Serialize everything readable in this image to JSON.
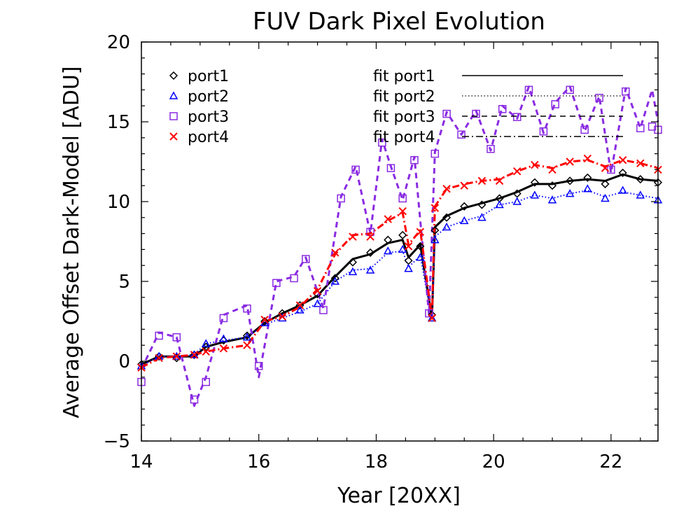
{
  "chart_data": {
    "type": "line",
    "title": "FUV Dark Pixel Evolution",
    "xlabel": "Year [20XX]",
    "ylabel": "Average Offset Dark-Model [ADU]",
    "xlim": [
      14,
      22.8
    ],
    "ylim": [
      -5,
      20
    ],
    "x_ticks": [
      "14",
      "16",
      "18",
      "20",
      "22"
    ],
    "y_ticks": [
      "−5",
      "0",
      "5",
      "10",
      "15",
      "20"
    ],
    "legend": {
      "placement": "top",
      "markers": [
        {
          "label": "port1",
          "color": "#000000",
          "marker": "diamond"
        },
        {
          "label": "port2",
          "color": "#0000ff",
          "marker": "triangle"
        },
        {
          "label": "port3",
          "color": "#8a2be2",
          "marker": "square"
        },
        {
          "label": "port4",
          "color": "#ff0000",
          "marker": "cross"
        }
      ],
      "fits": [
        {
          "label": "fit port1",
          "dash": "solid"
        },
        {
          "label": "fit port2",
          "dash": "dotted"
        },
        {
          "label": "fit port3",
          "dash": "dashed"
        },
        {
          "label": "fit port4",
          "dash": "dashdot"
        }
      ]
    },
    "series": [
      {
        "name": "port1",
        "color": "#000000",
        "marker": "diamond",
        "x": [
          14.0,
          14.3,
          14.6,
          14.9,
          15.1,
          15.4,
          15.8,
          16.1,
          16.4,
          16.7,
          17.0,
          17.3,
          17.6,
          17.9,
          18.2,
          18.45,
          18.55,
          18.75,
          18.95,
          19.0,
          19.2,
          19.5,
          19.8,
          20.1,
          20.4,
          20.7,
          21.0,
          21.3,
          21.6,
          21.9,
          22.2,
          22.5,
          22.8
        ],
        "y": [
          -0.2,
          0.3,
          0.2,
          0.4,
          0.9,
          1.3,
          1.6,
          2.5,
          3.0,
          3.5,
          4.2,
          5.2,
          6.2,
          6.8,
          7.6,
          7.9,
          6.3,
          7.2,
          2.9,
          8.2,
          9.0,
          9.7,
          9.8,
          10.2,
          10.5,
          11.2,
          11.0,
          11.3,
          11.5,
          11.1,
          11.8,
          11.4,
          11.2
        ]
      },
      {
        "name": "port2",
        "color": "#0000ff",
        "marker": "triangle",
        "x": [
          14.0,
          14.3,
          14.6,
          14.9,
          15.1,
          15.4,
          15.8,
          16.1,
          16.4,
          16.7,
          17.0,
          17.3,
          17.6,
          17.9,
          18.2,
          18.45,
          18.55,
          18.75,
          18.95,
          19.0,
          19.2,
          19.5,
          19.8,
          20.1,
          20.4,
          20.7,
          21.0,
          21.3,
          21.6,
          21.9,
          22.2,
          22.5,
          22.8
        ],
        "y": [
          -0.3,
          0.3,
          0.3,
          0.4,
          1.1,
          1.4,
          1.5,
          2.4,
          2.7,
          3.2,
          3.6,
          5.0,
          5.6,
          5.7,
          6.9,
          7.0,
          5.8,
          6.5,
          2.7,
          7.6,
          8.4,
          8.8,
          9.0,
          9.8,
          10.0,
          10.4,
          10.1,
          10.5,
          10.8,
          10.2,
          10.7,
          10.4,
          10.1
        ]
      },
      {
        "name": "port3",
        "color": "#8a2be2",
        "marker": "square",
        "x": [
          14.0,
          14.3,
          14.6,
          14.9,
          15.1,
          15.4,
          15.8,
          16.0,
          16.3,
          16.6,
          16.8,
          17.1,
          17.4,
          17.65,
          17.9,
          18.1,
          18.25,
          18.45,
          18.65,
          18.9,
          19.0,
          19.2,
          19.45,
          19.7,
          19.95,
          20.15,
          20.4,
          20.6,
          20.85,
          21.05,
          21.3,
          21.55,
          21.8,
          22.0,
          22.25,
          22.5,
          22.7,
          22.8
        ],
        "y": [
          -1.3,
          1.6,
          1.5,
          -2.4,
          -1.3,
          2.7,
          3.3,
          -0.3,
          4.9,
          5.2,
          6.4,
          3.2,
          10.2,
          12.0,
          8.1,
          13.7,
          12.1,
          10.2,
          12.6,
          3.0,
          13.0,
          15.5,
          14.2,
          15.5,
          13.3,
          15.8,
          15.3,
          17.0,
          14.4,
          16.1,
          17.0,
          14.5,
          16.5,
          12.0,
          16.9,
          14.6,
          14.7,
          14.5
        ]
      },
      {
        "name": "port4",
        "color": "#ff0000",
        "marker": "cross",
        "x": [
          14.0,
          14.3,
          14.6,
          14.9,
          15.1,
          15.4,
          15.8,
          16.1,
          16.4,
          16.7,
          17.0,
          17.3,
          17.6,
          17.9,
          18.2,
          18.45,
          18.55,
          18.75,
          18.95,
          19.0,
          19.2,
          19.5,
          19.8,
          20.1,
          20.4,
          20.7,
          21.0,
          21.3,
          21.6,
          21.9,
          22.2,
          22.5,
          22.8
        ],
        "y": [
          -0.4,
          0.2,
          0.3,
          0.4,
          0.6,
          0.8,
          1.0,
          2.6,
          2.8,
          3.5,
          4.4,
          6.8,
          7.8,
          7.8,
          8.9,
          9.4,
          7.2,
          8.1,
          2.7,
          9.6,
          10.8,
          11.0,
          11.3,
          11.3,
          11.9,
          12.3,
          12.0,
          12.5,
          12.7,
          12.1,
          12.6,
          12.4,
          12.0
        ]
      }
    ],
    "fits": [
      {
        "name": "fit port1",
        "color": "#000000",
        "dash": "solid",
        "width": 3,
        "x": [
          14.0,
          14.3,
          14.6,
          14.9,
          15.1,
          15.4,
          15.8,
          16.1,
          16.4,
          16.7,
          17.0,
          17.3,
          17.6,
          17.9,
          18.2,
          18.45,
          18.55,
          18.75,
          18.95,
          19.0,
          19.2,
          19.5,
          19.8,
          20.1,
          20.4,
          20.7,
          21.0,
          21.3,
          21.6,
          21.9,
          22.2,
          22.5,
          22.8
        ],
        "y": [
          -0.2,
          0.3,
          0.3,
          0.3,
          0.9,
          1.2,
          1.5,
          2.4,
          3.0,
          3.5,
          4.1,
          5.3,
          6.4,
          6.7,
          7.4,
          7.6,
          6.5,
          7.3,
          2.7,
          8.4,
          9.1,
          9.6,
          9.9,
          10.2,
          10.6,
          11.1,
          11.1,
          11.3,
          11.4,
          11.3,
          11.7,
          11.4,
          11.3
        ]
      },
      {
        "name": "fit port2",
        "color": "#0000ff",
        "dash": "dotted",
        "width": 2,
        "x": [
          14.0,
          14.3,
          14.6,
          14.9,
          15.1,
          15.4,
          15.8,
          16.1,
          16.4,
          16.7,
          17.0,
          17.3,
          17.6,
          17.9,
          18.2,
          18.45,
          18.55,
          18.75,
          18.95,
          19.0,
          19.2,
          19.5,
          19.8,
          20.1,
          20.4,
          20.7,
          21.0,
          21.3,
          21.6,
          21.9,
          22.2,
          22.5,
          22.8
        ],
        "y": [
          -0.3,
          0.3,
          0.3,
          0.4,
          1.1,
          1.3,
          1.5,
          2.3,
          2.7,
          3.1,
          3.6,
          5.0,
          5.7,
          5.8,
          6.8,
          6.9,
          5.9,
          6.6,
          2.6,
          7.8,
          8.4,
          8.8,
          9.1,
          9.8,
          10.0,
          10.4,
          10.2,
          10.5,
          10.7,
          10.3,
          10.6,
          10.4,
          10.2
        ]
      },
      {
        "name": "fit port3",
        "color": "#8a2be2",
        "dash": "dashed",
        "width": 3,
        "x": [
          14.0,
          14.3,
          14.6,
          14.9,
          15.1,
          15.4,
          15.8,
          16.0,
          16.3,
          16.6,
          16.8,
          17.1,
          17.4,
          17.65,
          17.9,
          18.1,
          18.25,
          18.45,
          18.65,
          18.9,
          19.0,
          19.2,
          19.45,
          19.7,
          19.95,
          20.15,
          20.4,
          20.6,
          20.85,
          21.05,
          21.3,
          21.55,
          21.8,
          22.0,
          22.25,
          22.5,
          22.7,
          22.8
        ],
        "y": [
          -0.5,
          1.8,
          1.5,
          -2.8,
          -1.0,
          2.9,
          3.5,
          -1.0,
          5.0,
          5.3,
          6.5,
          3.3,
          10.3,
          12.2,
          8.0,
          13.9,
          12.2,
          10.1,
          12.8,
          2.9,
          13.1,
          15.6,
          14.2,
          15.7,
          13.2,
          16.0,
          15.2,
          17.2,
          14.3,
          16.2,
          17.2,
          14.4,
          16.6,
          11.8,
          17.1,
          14.6,
          17.0,
          15.0
        ]
      },
      {
        "name": "fit port4",
        "color": "#ff0000",
        "dash": "dashdot",
        "width": 3,
        "x": [
          14.0,
          14.3,
          14.6,
          14.9,
          15.1,
          15.4,
          15.8,
          16.1,
          16.4,
          16.7,
          17.0,
          17.3,
          17.6,
          17.9,
          18.2,
          18.45,
          18.55,
          18.75,
          18.95,
          19.0,
          19.2,
          19.5,
          19.8,
          20.1,
          20.4,
          20.7,
          21.0,
          21.3,
          21.6,
          21.9,
          22.2,
          22.5,
          22.8
        ],
        "y": [
          -0.4,
          0.2,
          0.3,
          0.4,
          0.6,
          0.8,
          1.0,
          2.5,
          2.8,
          3.4,
          4.5,
          6.7,
          7.9,
          8.0,
          8.8,
          9.3,
          7.3,
          8.2,
          2.7,
          9.7,
          10.8,
          11.1,
          11.3,
          11.4,
          11.9,
          12.3,
          12.1,
          12.5,
          12.6,
          12.2,
          12.6,
          12.4,
          12.1
        ]
      }
    ]
  }
}
